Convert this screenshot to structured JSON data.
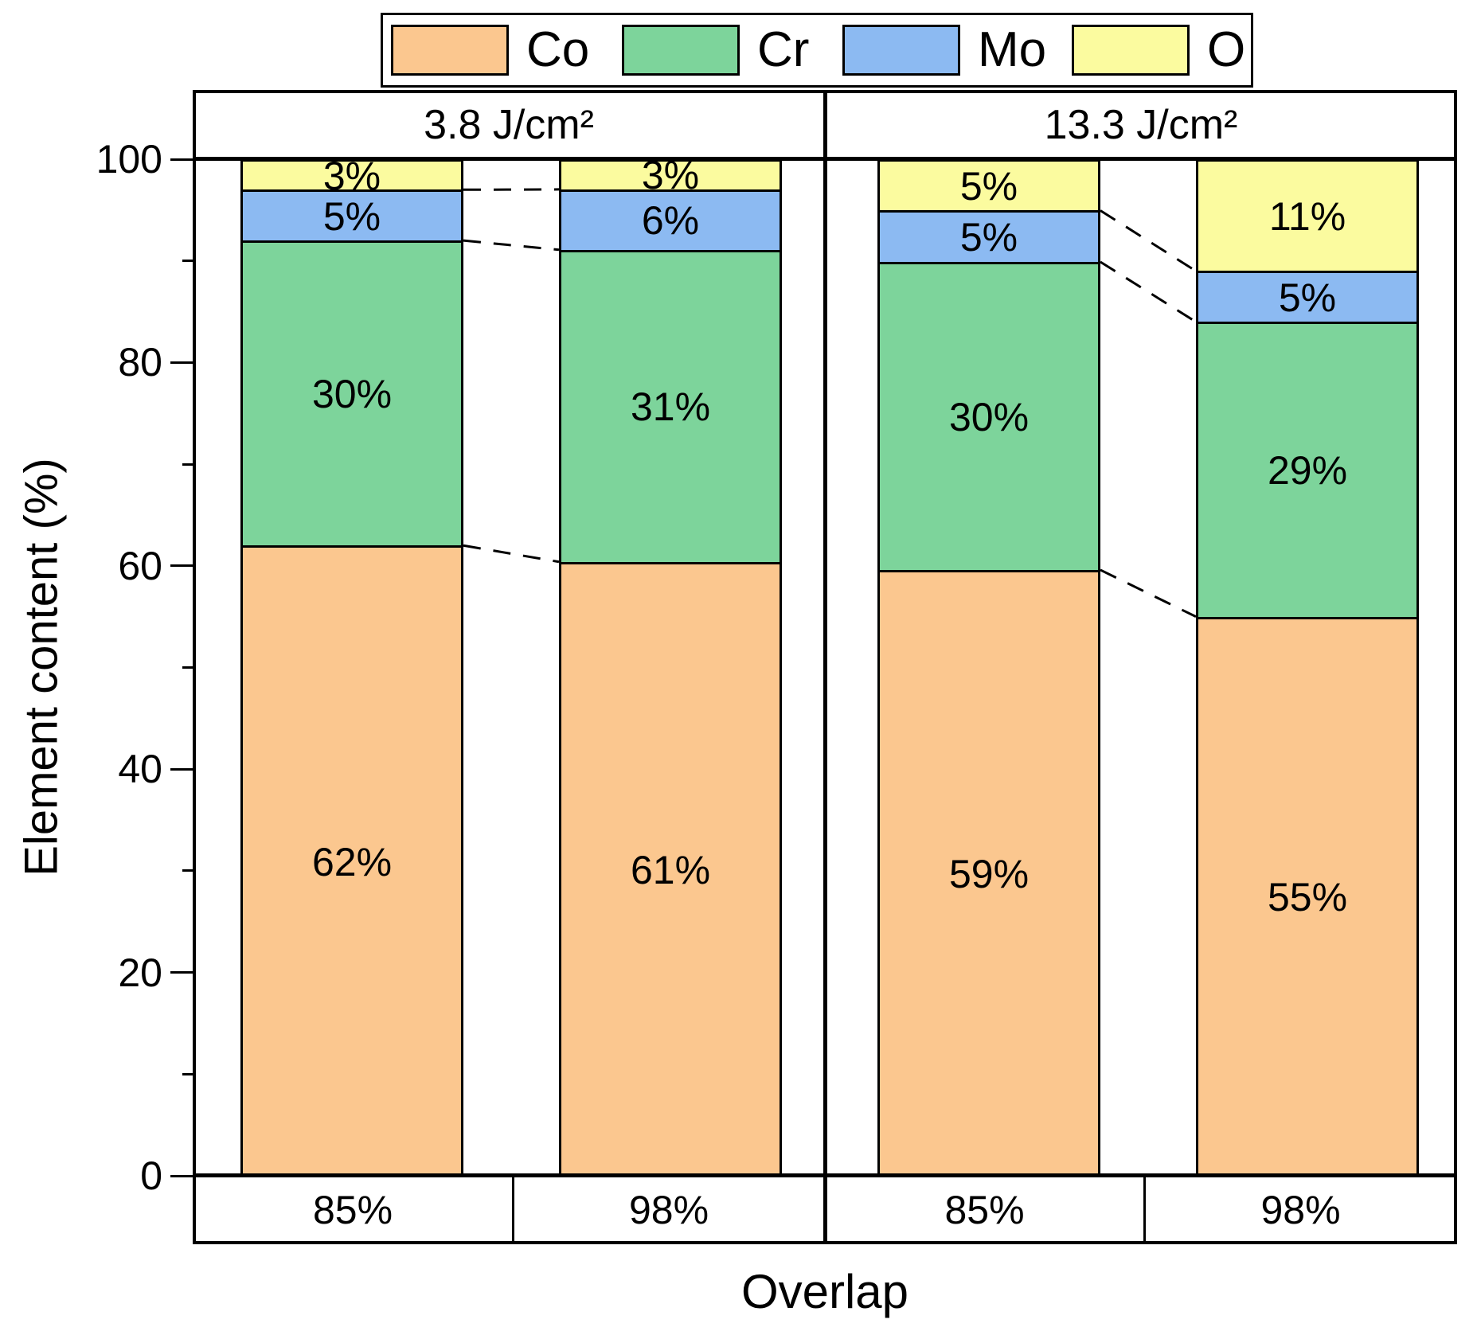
{
  "legend": {
    "items": [
      {
        "label": "Co",
        "color": "#FBC78F"
      },
      {
        "label": "Cr",
        "color": "#7DD49B"
      },
      {
        "label": "Mo",
        "color": "#8CBAF2"
      },
      {
        "label": "O",
        "color": "#FBFB9F"
      }
    ]
  },
  "y_axis": {
    "title": "Element content (%)",
    "major_ticks": [
      0,
      20,
      40,
      60,
      80,
      100
    ],
    "minor_ticks": [
      10,
      30,
      50,
      70,
      90
    ],
    "min": 0,
    "max": 100
  },
  "x_axis": {
    "title": "Overlap",
    "categories": [
      "85%",
      "98%",
      "85%",
      "98%"
    ]
  },
  "panels": [
    {
      "header": "3.8 J/cm²"
    },
    {
      "header": "13.3 J/cm²"
    }
  ],
  "chart_data": {
    "type": "bar",
    "stacked": true,
    "orientation": "vertical",
    "title": "",
    "xlabel": "Overlap",
    "ylabel": "Element content (%)",
    "ylim": [
      0,
      100
    ],
    "grid": false,
    "legend_position": "top",
    "panel_groups": [
      "3.8 J/cm²",
      "13.3 J/cm²"
    ],
    "categories": [
      "85%",
      "98%",
      "85%",
      "98%"
    ],
    "category_panel": [
      0,
      0,
      1,
      1
    ],
    "series": [
      {
        "name": "Co",
        "color": "#FBC78F",
        "values": [
          62,
          61,
          59,
          55
        ],
        "labels": [
          "62%",
          "61%",
          "59%",
          "55%"
        ]
      },
      {
        "name": "Cr",
        "color": "#7DD49B",
        "values": [
          30,
          31,
          30,
          29
        ],
        "labels": [
          "30%",
          "31%",
          "30%",
          "29%"
        ]
      },
      {
        "name": "Mo",
        "color": "#8CBAF2",
        "values": [
          5,
          6,
          5,
          5
        ],
        "labels": [
          "5%",
          "6%",
          "5%",
          "5%"
        ]
      },
      {
        "name": "O",
        "color": "#FBFB9F",
        "values": [
          3,
          3,
          5,
          11
        ],
        "labels": [
          "3%",
          "3%",
          "5%",
          "11%"
        ]
      }
    ],
    "connector_pairs": [
      [
        0,
        1
      ],
      [
        2,
        3
      ]
    ],
    "connector_style": "dashed"
  }
}
